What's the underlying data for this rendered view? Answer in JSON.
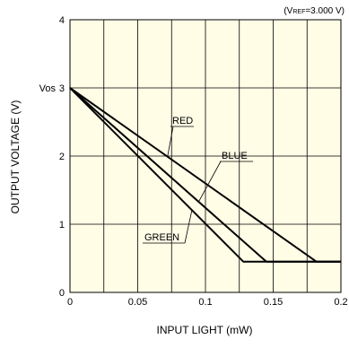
{
  "chart_data": {
    "type": "line",
    "xlabel": "INPUT LIGHT (mW)",
    "ylabel": "OUTPUT VOLTAGE (V)",
    "xlim": [
      0,
      0.2
    ],
    "ylim": [
      0,
      4
    ],
    "x_ticks": [
      0,
      0.05,
      0.1,
      0.15,
      0.2
    ],
    "x_tick_labels": [
      "0",
      "0.05",
      "0.1",
      "0.15",
      "0.2"
    ],
    "y_ticks": [
      0,
      1,
      2,
      3,
      4
    ],
    "y_tick_labels": [
      "0",
      "1",
      "2",
      "3",
      "4"
    ],
    "vos_label": "Vos",
    "vref_prefix": "(V",
    "vref_subscript": "REF",
    "vref_suffix": "=3.000 V)",
    "grid": true,
    "background": "#FFFDE6",
    "line_color": "#000000",
    "series": [
      {
        "name": "RED",
        "x": [
          0,
          0.182,
          0.2
        ],
        "y": [
          3,
          0.45,
          0.45
        ]
      },
      {
        "name": "BLUE",
        "x": [
          0,
          0.145,
          0.2
        ],
        "y": [
          3,
          0.45,
          0.45
        ]
      },
      {
        "name": "GREEN",
        "x": [
          0,
          0.128,
          0.2
        ],
        "y": [
          3,
          0.45,
          0.45
        ]
      }
    ]
  }
}
